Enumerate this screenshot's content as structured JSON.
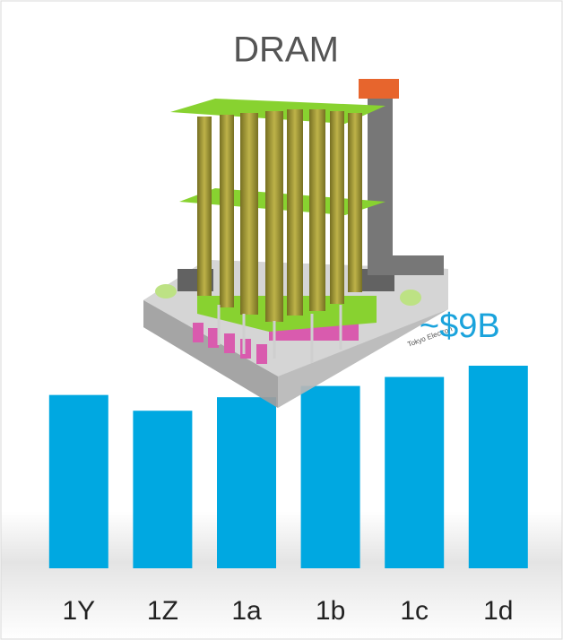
{
  "chart_data": {
    "type": "bar",
    "title": "DRAM",
    "categories": [
      "1Y",
      "1Z",
      "1a",
      "1b",
      "1c",
      "1d"
    ],
    "values": [
      7.7,
      7.0,
      7.6,
      8.1,
      8.5,
      9
    ],
    "value_labels": [
      null,
      null,
      null,
      null,
      null,
      "~$9B"
    ],
    "color": "#00a8e1"
  }
}
